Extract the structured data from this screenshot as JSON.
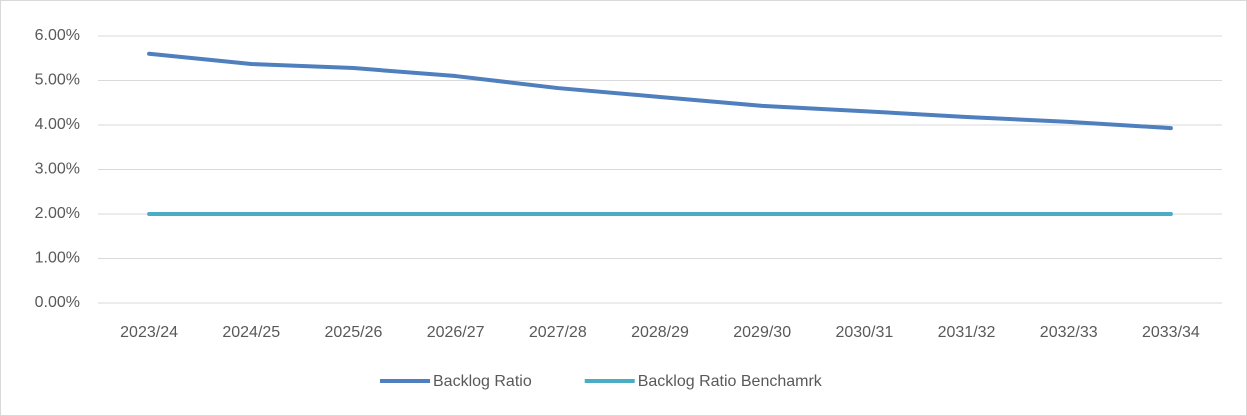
{
  "chart_data": {
    "type": "line",
    "categories": [
      "2023/24",
      "2024/25",
      "2025/26",
      "2026/27",
      "2027/28",
      "2028/29",
      "2029/30",
      "2030/31",
      "2031/32",
      "2032/33",
      "2033/34"
    ],
    "series": [
      {
        "name": "Backlog Ratio",
        "color": "#4f7fbd",
        "values": [
          5.6,
          5.37,
          5.28,
          5.1,
          4.83,
          4.63,
          4.43,
          4.31,
          4.18,
          4.07,
          3.93
        ]
      },
      {
        "name": "Backlog Ratio Benchamrk",
        "color": "#4bacc6",
        "values": [
          2,
          2,
          2,
          2,
          2,
          2,
          2,
          2,
          2,
          2,
          2
        ]
      }
    ],
    "ylim": [
      0,
      6
    ],
    "yticks": [
      {
        "value": 0,
        "label": "0.00%"
      },
      {
        "value": 1,
        "label": "1.00%"
      },
      {
        "value": 2,
        "label": "2.00%"
      },
      {
        "value": 3,
        "label": "3.00%"
      },
      {
        "value": 4,
        "label": "4.00%"
      },
      {
        "value": 5,
        "label": "5.00%"
      },
      {
        "value": 6,
        "label": "6.00%"
      }
    ],
    "grid": true,
    "legend": "bottom"
  }
}
